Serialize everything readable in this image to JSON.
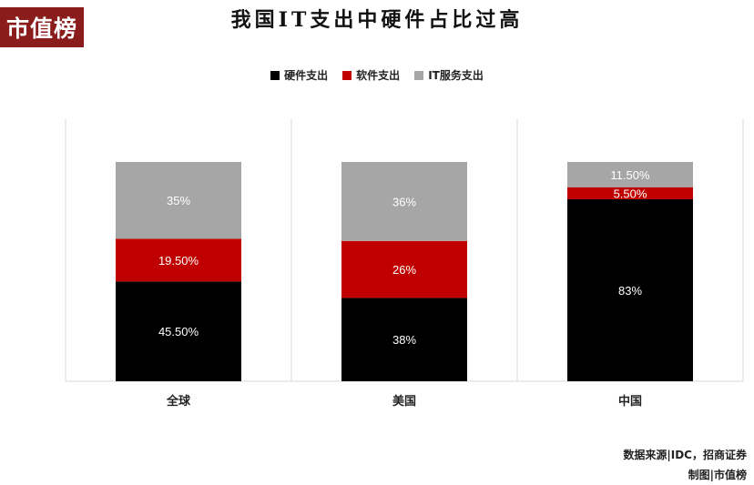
{
  "logo": {
    "text": "市值榜"
  },
  "chart_data": {
    "type": "bar",
    "stacked": true,
    "title": "我国IT支出中硬件占比过高",
    "categories": [
      "全球",
      "美国",
      "中国"
    ],
    "series": [
      {
        "name": "硬件支出",
        "color": "#000000",
        "values": [
          45.5,
          38,
          83
        ],
        "labels": [
          "45.50%",
          "38%",
          "83%"
        ]
      },
      {
        "name": "软件支出",
        "color": "#c00000",
        "values": [
          19.5,
          26,
          5.5
        ],
        "labels": [
          "19.50%",
          "26%",
          "5.50%"
        ]
      },
      {
        "name": "IT服务支出",
        "color": "#a6a6a6",
        "values": [
          35,
          36,
          11.5
        ],
        "labels": [
          "35%",
          "36%",
          "11.50%"
        ]
      }
    ],
    "ylim": [
      0,
      100
    ],
    "legend_position": "top",
    "grid": false
  },
  "source": {
    "line1": "数据来源|IDC，招商证券",
    "line2": "制图|市值榜"
  }
}
